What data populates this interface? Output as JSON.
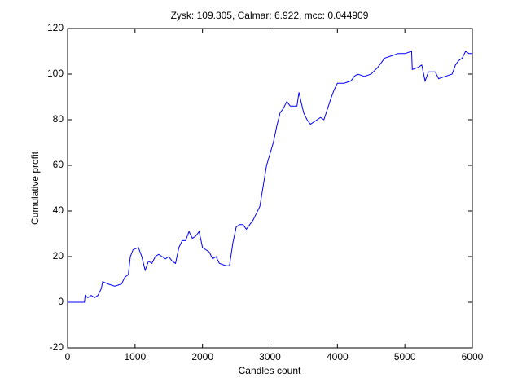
{
  "chart_data": {
    "type": "line",
    "title": "Zysk: 109.305, Calmar: 6.922, mcc: 0.044909",
    "x_label": "Candles count",
    "y_label": "Cumulative profit",
    "xlim": [
      0,
      6000
    ],
    "xticks": [
      0,
      1000,
      2000,
      3000,
      4000,
      5000,
      6000
    ],
    "ylim": [
      -20,
      120
    ],
    "yticks": [
      -20,
      0,
      20,
      40,
      60,
      80,
      100,
      120
    ],
    "grid": false,
    "x": [
      0,
      250,
      260,
      300,
      350,
      400,
      450,
      500,
      520,
      600,
      700,
      800,
      850,
      900,
      930,
      970,
      1050,
      1100,
      1150,
      1200,
      1250,
      1300,
      1350,
      1450,
      1500,
      1550,
      1600,
      1650,
      1700,
      1750,
      1800,
      1850,
      1900,
      1950,
      2000,
      2100,
      2150,
      2200,
      2250,
      2350,
      2400,
      2450,
      2500,
      2550,
      2600,
      2650,
      2700,
      2750,
      2800,
      2850,
      2900,
      2950,
      3000,
      3050,
      3100,
      3150,
      3200,
      3250,
      3300,
      3350,
      3400,
      3430,
      3460,
      3500,
      3550,
      3600,
      3650,
      3700,
      3750,
      3800,
      3900,
      3950,
      4000,
      4100,
      4200,
      4250,
      4300,
      4400,
      4500,
      4600,
      4700,
      4800,
      4900,
      5000,
      5100,
      5110,
      5200,
      5250,
      5300,
      5350,
      5450,
      5500,
      5600,
      5700,
      5750,
      5800,
      5850,
      5900,
      5950,
      6000
    ],
    "series": [
      {
        "color": "#0000ff",
        "values": [
          0,
          0,
          3,
          2,
          3,
          2,
          3,
          6,
          9,
          8,
          7,
          8,
          11,
          12,
          20,
          23,
          24,
          20,
          14,
          18,
          17,
          20,
          21,
          19,
          20,
          18,
          17,
          24,
          27,
          27,
          31,
          28,
          29,
          31,
          24,
          22,
          19,
          20,
          17,
          16,
          16,
          26,
          33,
          34,
          34,
          32,
          34,
          36,
          39,
          42,
          51,
          60,
          65,
          70,
          77,
          83,
          85,
          88,
          86,
          86,
          86,
          92,
          88,
          83,
          80,
          78,
          79,
          80,
          81,
          80,
          89,
          93,
          96,
          96,
          97,
          99,
          100,
          99,
          100,
          103,
          107,
          108,
          109,
          109,
          110,
          102,
          103,
          104,
          97,
          101,
          101,
          98,
          99,
          100,
          104,
          106,
          107,
          110,
          109,
          109
        ]
      }
    ]
  }
}
